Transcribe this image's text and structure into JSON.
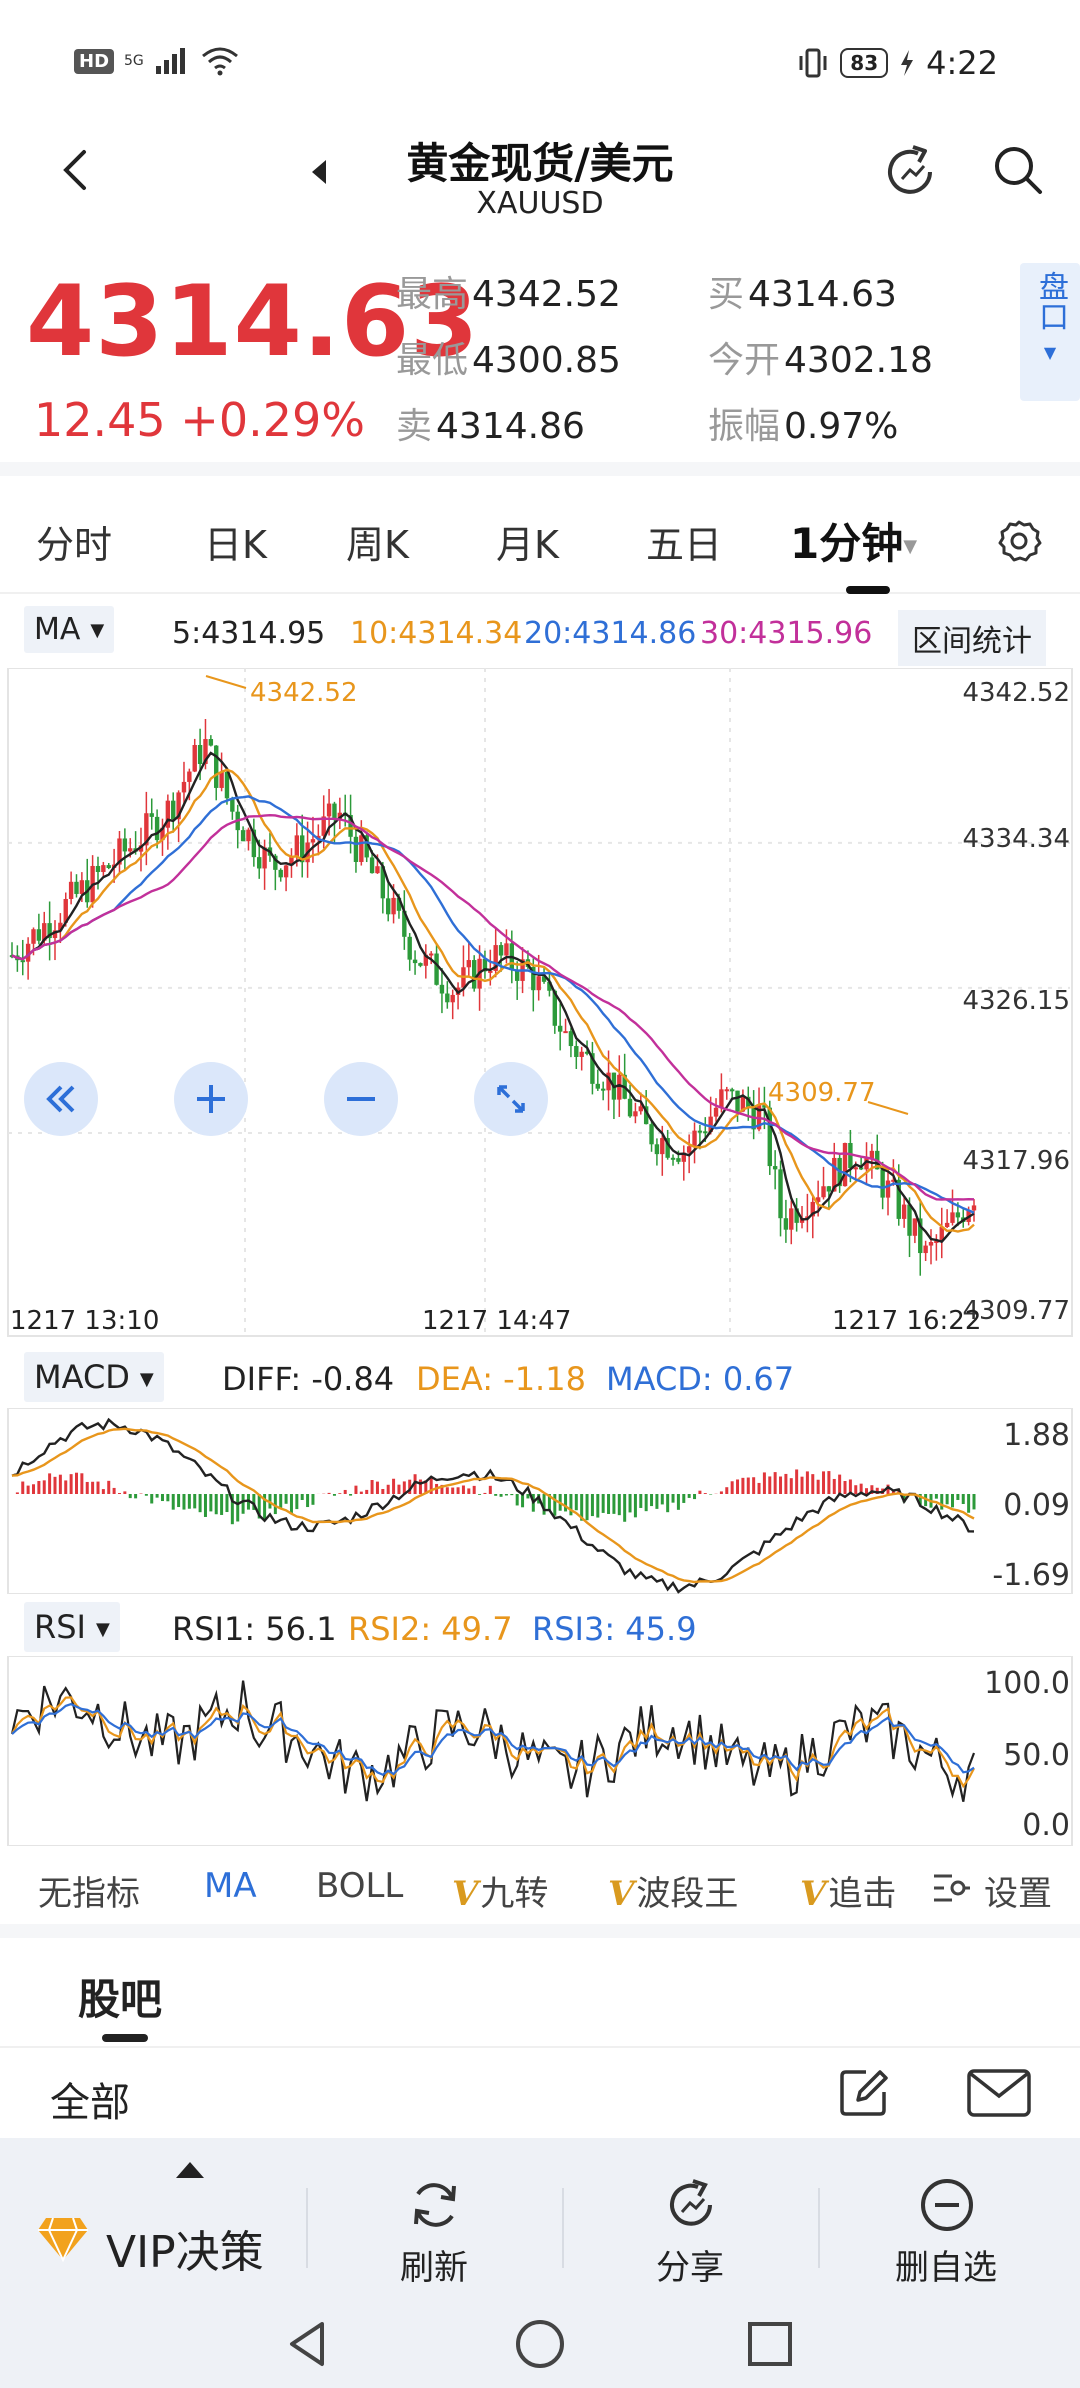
{
  "status_bar": {
    "hd": "HD",
    "network": "5G",
    "battery": "83",
    "time": "4:22"
  },
  "header": {
    "title": "黄金现货/美元",
    "symbol": "XAUUSD"
  },
  "quote": {
    "price": "4314.63",
    "change": "12.45 +0.29%",
    "high_label": "最高",
    "high": "4342.52",
    "low_label": "最低",
    "low": "4300.85",
    "sell_label": "卖",
    "sell": "4314.86",
    "buy_label": "买",
    "buy": "4314.63",
    "open_label": "今开",
    "open": "4302.18",
    "amp_label": "振幅",
    "amp": "0.97%",
    "pankou": "盘口"
  },
  "tabs": [
    "分时",
    "日K",
    "周K",
    "月K",
    "五日",
    "1分钟"
  ],
  "active_tab": "1分钟",
  "ma": {
    "selector": "MA",
    "ma5": "5:4314.95",
    "ma10": "10:4314.34",
    "ma20": "20:4314.86",
    "ma30": "30:4315.96",
    "range_stats": "区间统计"
  },
  "main_chart": {
    "price_axis": [
      "4342.52",
      "4334.34",
      "4326.15",
      "4317.96",
      "4309.77"
    ],
    "time_axis": [
      "1217  13:10",
      "1217  14:47",
      "1217  16:22"
    ],
    "high_marker": "4342.52",
    "low_marker": "4309.77"
  },
  "macd": {
    "selector": "MACD",
    "diff": "DIFF: -0.84",
    "dea": "DEA: -1.18",
    "macd": "MACD: 0.67",
    "axis": [
      "1.88",
      "0.09",
      "-1.69"
    ]
  },
  "rsi": {
    "selector": "RSI",
    "rsi1": "RSI1: 56.1",
    "rsi2": "RSI2: 49.7",
    "rsi3": "RSI3: 45.9",
    "axis": [
      "100.0",
      "50.0",
      "0.0"
    ]
  },
  "indicator_tabs": {
    "none": "无指标",
    "ma": "MA",
    "boll": "BOLL",
    "jiuzhuan": "九转",
    "boduan": "波段王",
    "zhuiji": "追击",
    "settings": "设置"
  },
  "guba": {
    "title": "股吧",
    "all": "全部"
  },
  "actions": {
    "vip": "VIP决策",
    "refresh": "刷新",
    "share": "分享",
    "remove": "删自选"
  },
  "colors": {
    "up": "#e0363b",
    "down": "#2c9a3a",
    "ma5": "#222222",
    "ma10": "#e8961c",
    "ma20": "#2f6fd6",
    "ma30": "#c2309a",
    "accent": "#2d6fd8"
  }
}
